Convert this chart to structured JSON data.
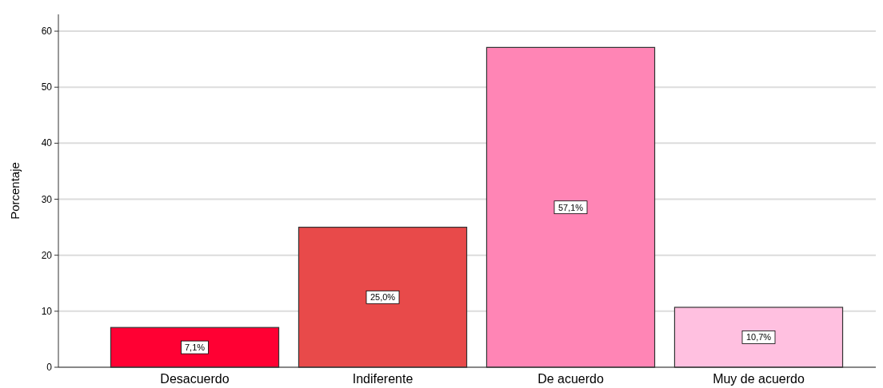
{
  "chart_data": {
    "type": "bar",
    "ylabel": "Porcentaje",
    "categories": [
      "Desacuerdo",
      "Indiferente",
      "De acuerdo",
      "Muy de acuerdo"
    ],
    "values": [
      7.1,
      25.0,
      57.1,
      10.7
    ],
    "colors": [
      "#ff0033",
      "#e84a4a",
      "#ff85b5",
      "#ffc0e0"
    ],
    "value_labels": [
      "7,1%",
      "25,0%",
      "57,1%",
      "10,7%"
    ],
    "ylim": [
      0,
      63
    ],
    "yticks": [
      0,
      10,
      20,
      30,
      40,
      50,
      60
    ],
    "grid": "y"
  }
}
